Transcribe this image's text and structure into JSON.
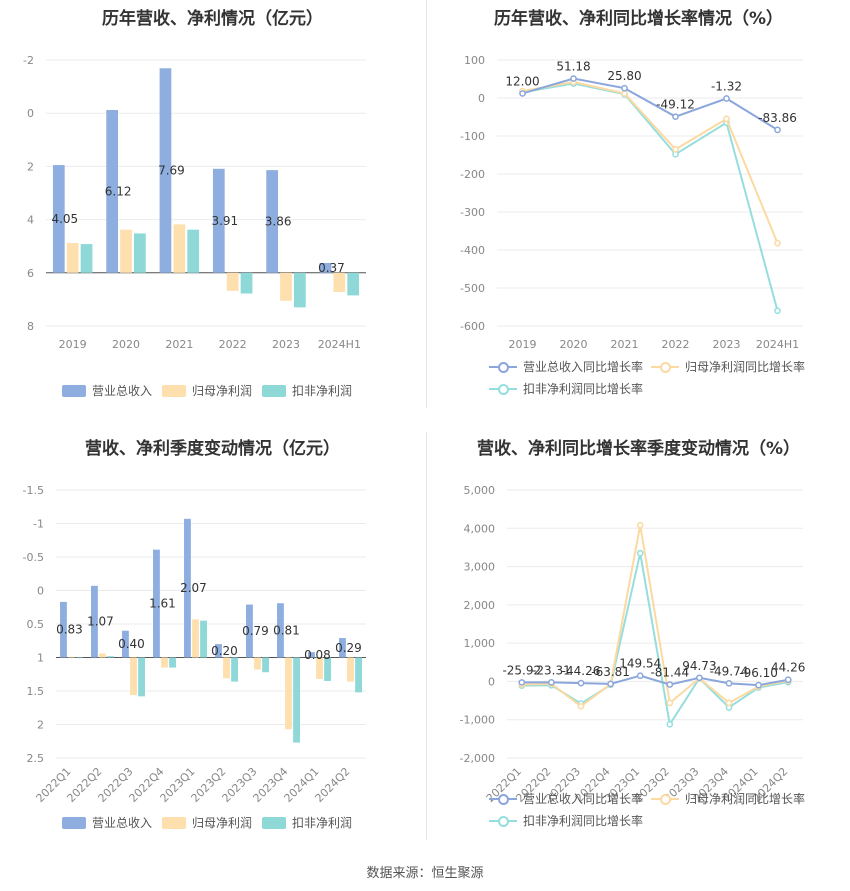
{
  "source": "数据来源：恒生聚源",
  "colors": {
    "revenue": "#8eaee0",
    "net": "#fde0ae",
    "deduct": "#8ed8d8",
    "line1": "#8aa6dc",
    "line2": "#fcd9a0",
    "line3": "#96dede"
  },
  "chart_data": [
    {
      "type": "bar",
      "title": "历年营收、净利情况（亿元）",
      "categories": [
        "2019",
        "2020",
        "2021",
        "2022",
        "2023",
        "2024H1"
      ],
      "ylim": [
        -2,
        8
      ],
      "yticks": [
        "-2",
        "0",
        "2",
        "4",
        "6",
        "8"
      ],
      "series": [
        {
          "name": "营业总收入",
          "values": [
            4.05,
            6.12,
            7.69,
            3.91,
            3.86,
            0.37
          ],
          "labels": [
            "4.05",
            "6.12",
            "7.69",
            "3.91",
            "3.86",
            "0.37"
          ]
        },
        {
          "name": "归母净利润",
          "values": [
            1.12,
            1.62,
            1.82,
            -0.68,
            -1.05,
            -0.72
          ]
        },
        {
          "name": "扣非净利润",
          "values": [
            1.08,
            1.48,
            1.62,
            -0.78,
            -1.3,
            -0.85
          ]
        }
      ],
      "legend": "bottom"
    },
    {
      "type": "line",
      "title": "历年营收、净利同比增长率情况（%）",
      "categories": [
        "2019",
        "2020",
        "2021",
        "2022",
        "2023",
        "2024H1"
      ],
      "ylim": [
        -600,
        100
      ],
      "yticks": [
        "100",
        "0",
        "-100",
        "-200",
        "-300",
        "-400",
        "-500",
        "-600"
      ],
      "series": [
        {
          "name": "营业总收入同比增长率",
          "values": [
            12.0,
            51.18,
            25.8,
            -49.12,
            -1.32,
            -83.86
          ],
          "labels": [
            "12.00",
            "51.18",
            "25.80",
            "-49.12",
            "-1.32",
            "-83.86"
          ]
        },
        {
          "name": "归母净利润同比增长率",
          "values": [
            18,
            42,
            12,
            -135,
            -55,
            -382
          ]
        },
        {
          "name": "扣非净利润同比增长率",
          "values": [
            15,
            38,
            10,
            -148,
            -65,
            -560
          ]
        }
      ],
      "legend": "bottom"
    },
    {
      "type": "bar",
      "title": "营收、净利季度变动情况（亿元）",
      "categories": [
        "2022Q1",
        "2022Q2",
        "2022Q3",
        "2022Q4",
        "2023Q1",
        "2023Q2",
        "2023Q3",
        "2023Q4",
        "2024Q1",
        "2024Q2"
      ],
      "ylim": [
        -1.5,
        2.5
      ],
      "yticks": [
        "-1.5",
        "-1",
        "-0.5",
        "0",
        "0.5",
        "1",
        "1.5",
        "2",
        "2.5"
      ],
      "series": [
        {
          "name": "营业总收入",
          "values": [
            0.83,
            1.07,
            0.4,
            1.61,
            2.07,
            0.2,
            0.79,
            0.81,
            0.08,
            0.29
          ],
          "labels": [
            "0.83",
            "1.07",
            "0.40",
            "1.61",
            "2.07",
            "0.20",
            "0.79",
            "0.81",
            "0.08",
            "0.29"
          ]
        },
        {
          "name": "归母净利润",
          "values": [
            0.01,
            0.06,
            -0.56,
            -0.15,
            0.57,
            -0.31,
            -0.18,
            -1.07,
            -0.32,
            -0.36
          ]
        },
        {
          "name": "扣非净利润",
          "values": [
            -0.01,
            0.02,
            -0.58,
            -0.15,
            0.55,
            -0.36,
            -0.22,
            -1.27,
            -0.35,
            -0.52
          ]
        }
      ],
      "legend": "bottom"
    },
    {
      "type": "line",
      "title": "营收、净利同比增长率季度变动情况（%）",
      "categories": [
        "2022Q1",
        "2022Q2",
        "2022Q3",
        "2022Q4",
        "2023Q1",
        "2023Q2",
        "2023Q3",
        "2023Q4",
        "2024Q1",
        "2024Q2"
      ],
      "ylim": [
        -2000,
        5000
      ],
      "yticks": [
        "5,000",
        "4,000",
        "3,000",
        "2,000",
        "1,000",
        "0",
        "-1,000",
        "-2,000"
      ],
      "series": [
        {
          "name": "营业总收入同比增长率",
          "values": [
            -25.92,
            -23.31,
            -44.26,
            -63.81,
            149.54,
            -81.44,
            94.73,
            -49.74,
            -96.1,
            44.26
          ],
          "labels": [
            "-25.92",
            "-23.31",
            "-44.26",
            "-63.81",
            "149.54",
            "-81.44",
            "94.73",
            "-49.74",
            "-96.10",
            "44.26"
          ]
        },
        {
          "name": "归母净利润同比增长率",
          "values": [
            -80,
            -60,
            -650,
            -70,
            4080,
            -560,
            80,
            -560,
            -130,
            20
          ]
        },
        {
          "name": "扣非净利润同比增长率",
          "values": [
            -110,
            -100,
            -580,
            -90,
            3350,
            -1120,
            80,
            -680,
            -160,
            -20
          ]
        }
      ],
      "legend": "bottom"
    }
  ]
}
